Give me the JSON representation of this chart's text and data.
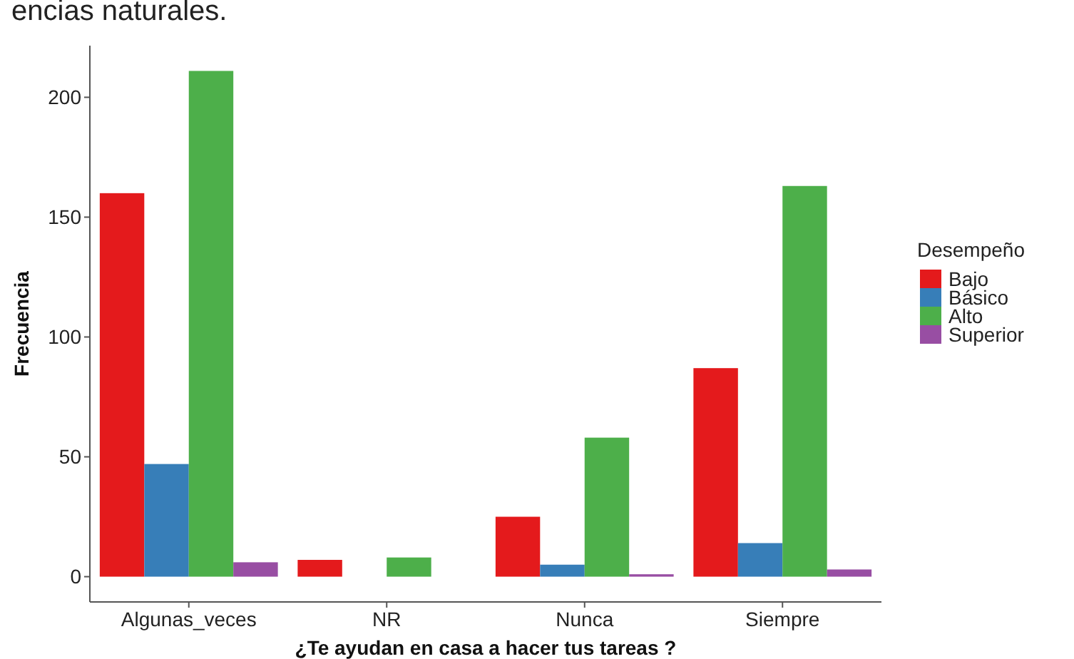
{
  "chart_data": {
    "type": "bar",
    "title": "encias naturales.",
    "xlabel": "¿Te ayudan en casa a hacer tus tareas ?",
    "ylabel": "Frecuencia",
    "legend_title": "Desempeño",
    "categories": [
      "Algunas_veces",
      "NR",
      "Nunca",
      "Siempre"
    ],
    "series": [
      {
        "name": "Bajo",
        "color": "#e41a1c",
        "values": [
          160,
          7,
          25,
          87
        ]
      },
      {
        "name": "Básico",
        "color": "#377eb8",
        "values": [
          47,
          0,
          5,
          14
        ]
      },
      {
        "name": "Alto",
        "color": "#4daf4a",
        "values": [
          211,
          8,
          58,
          163
        ]
      },
      {
        "name": "Superior",
        "color": "#984ea3",
        "values": [
          6,
          0,
          1,
          3
        ]
      }
    ],
    "ylim": [
      -10.55,
      221.55
    ],
    "yticks": [
      0,
      50,
      100,
      150,
      200
    ],
    "legend": "right",
    "grid": false
  }
}
